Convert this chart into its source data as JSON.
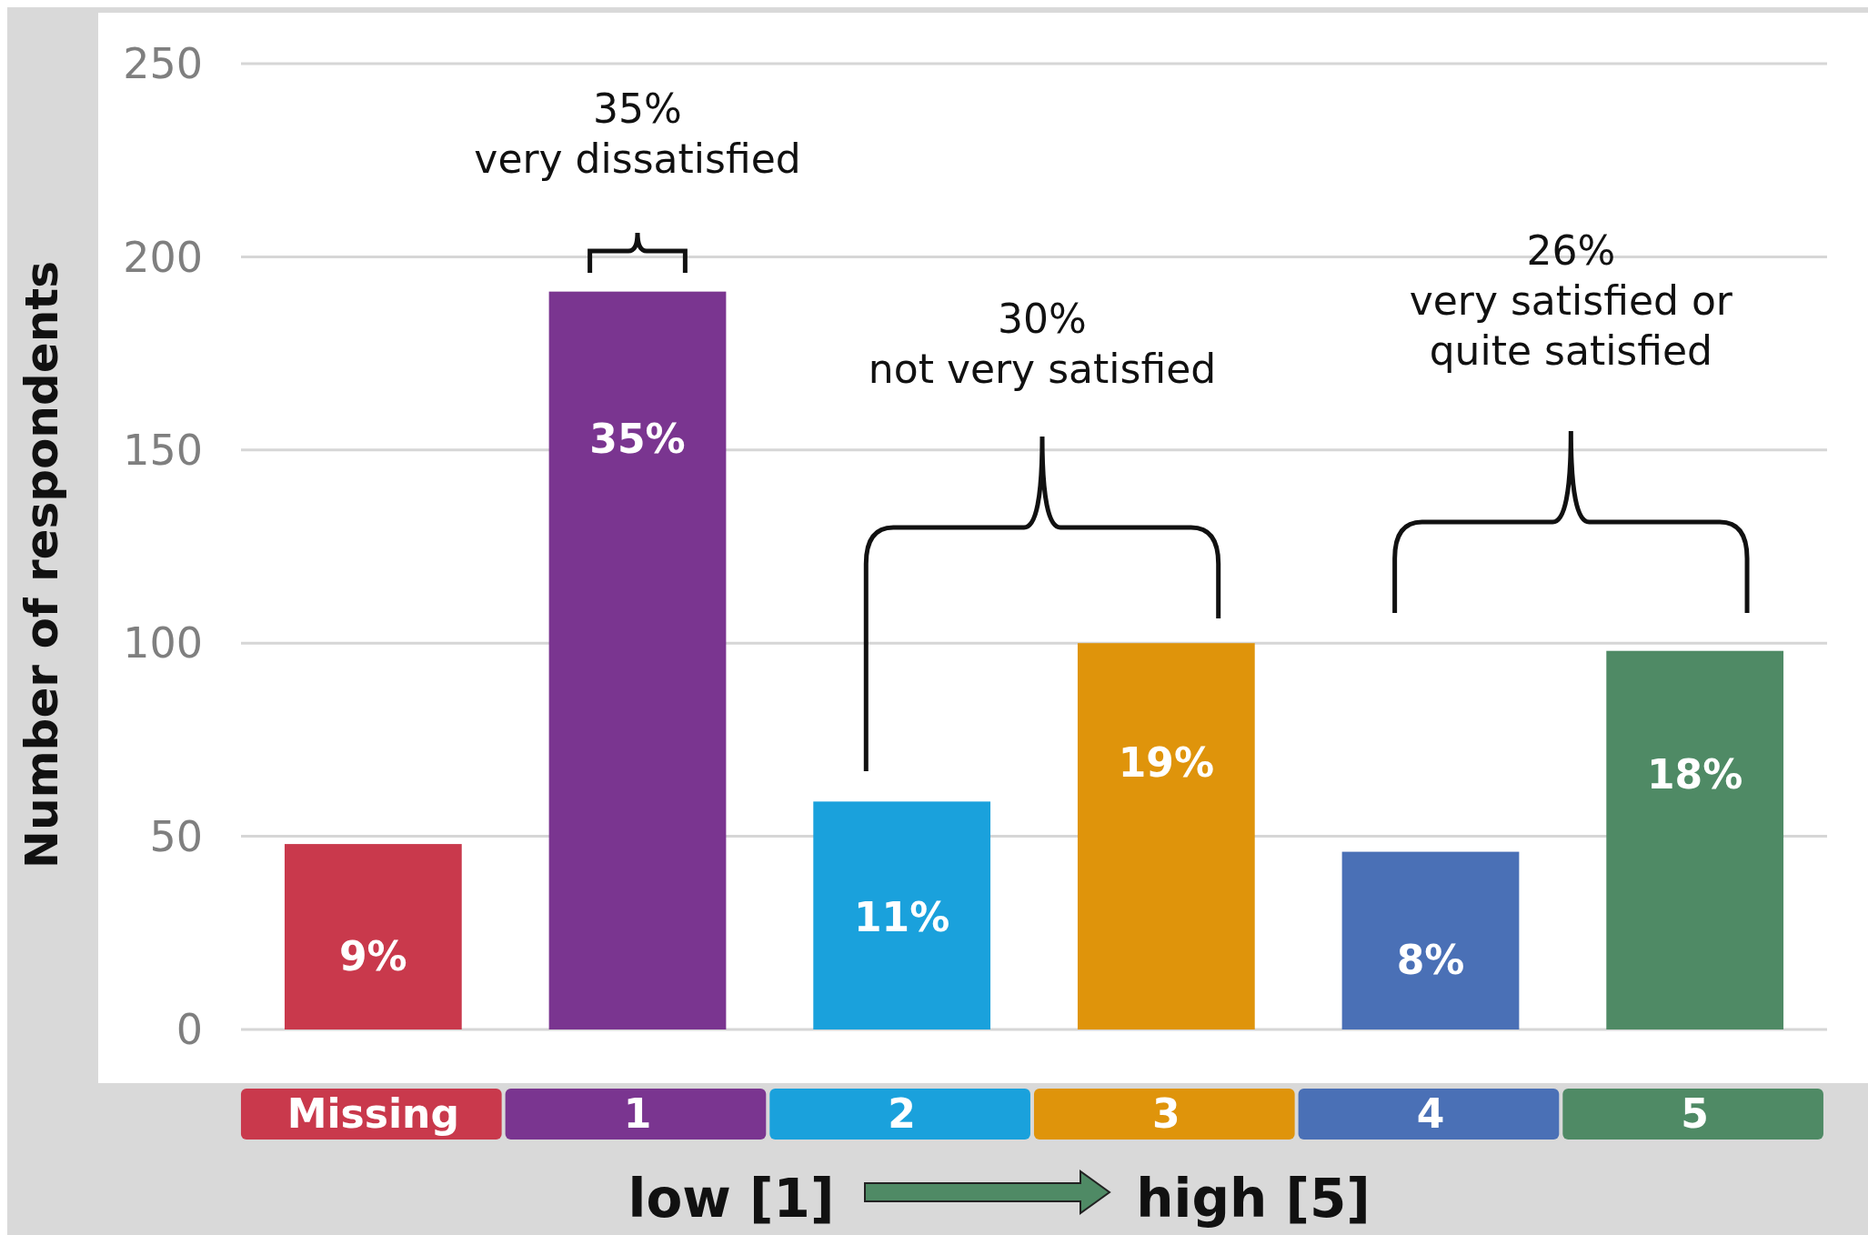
{
  "chart_data": {
    "type": "bar",
    "ylabel": "Number of respondents",
    "categories": [
      "Missing",
      "1",
      "2",
      "3",
      "4",
      "5"
    ],
    "values": [
      48,
      191,
      59,
      100,
      46,
      98
    ],
    "colors": [
      "#c9394c",
      "#7a3590",
      "#1aa1dc",
      "#df940b",
      "#4a70b6",
      "#4f8a65"
    ],
    "ylim": [
      0,
      250
    ],
    "yticks": [
      0,
      50,
      100,
      150,
      200,
      250
    ],
    "grid": "y",
    "annotations": [
      "35%\nvery dissatisfied",
      "30%\nnot very satisfied",
      "26%\nvery satisfied or\nquite satisfied",
      "low [1]",
      "high [5]",
      "9%",
      "35%",
      "11%",
      "19%",
      "8%",
      "18%"
    ]
  }
}
